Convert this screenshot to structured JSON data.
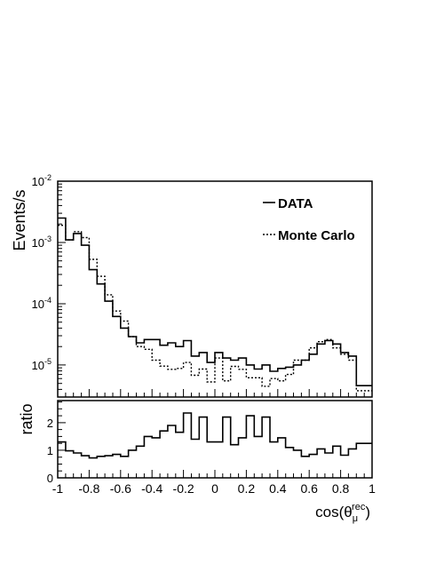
{
  "chart_data": {
    "type": "step-histogram",
    "x_edges": [
      -1.0,
      -0.95,
      -0.9,
      -0.85,
      -0.8,
      -0.75,
      -0.7,
      -0.65,
      -0.6,
      -0.55,
      -0.5,
      -0.45,
      -0.4,
      -0.35,
      -0.3,
      -0.25,
      -0.2,
      -0.15,
      -0.1,
      -0.05,
      0.0,
      0.05,
      0.1,
      0.15,
      0.2,
      0.25,
      0.3,
      0.35,
      0.4,
      0.45,
      0.5,
      0.55,
      0.6,
      0.65,
      0.7,
      0.75,
      0.8,
      0.85,
      0.9,
      0.95,
      1.0
    ],
    "top_panel": {
      "ylabel": "Events/s",
      "yscale": "log",
      "ylim": [
        3e-06,
        0.01
      ],
      "ytick_labels": [
        {
          "base": "10",
          "exp": "-2",
          "value": 0.01
        },
        {
          "base": "10",
          "exp": "-3",
          "value": 0.001
        },
        {
          "base": "10",
          "exp": "-4",
          "value": 0.0001
        },
        {
          "base": "10",
          "exp": "-5",
          "value": 1e-05
        }
      ],
      "series": [
        {
          "name": "DATA",
          "style": "solid",
          "values": [
            0.0025,
            0.0011,
            0.0014,
            0.0009,
            0.00036,
            0.00021,
            0.00011,
            6.2e-05,
            4e-05,
            2.9e-05,
            2.3e-05,
            2.6e-05,
            2.6e-05,
            2.1e-05,
            2.3e-05,
            2e-05,
            2.5e-05,
            1.4e-05,
            1.6e-05,
            1.1e-05,
            1.6e-05,
            1.3e-05,
            1.2e-05,
            1.3e-05,
            1e-05,
            8.6e-06,
            1e-05,
            7.9e-06,
            8.8e-06,
            9.2e-06,
            1e-05,
            1.2e-05,
            1.5e-05,
            2.2e-05,
            2.5e-05,
            2.2e-05,
            1.6e-05,
            1.4e-05,
            4.6e-06,
            4.6e-06
          ]
        },
        {
          "name": "Monte Carlo",
          "style": "dotted",
          "values": [
            0.0019,
            0.0011,
            0.0015,
            0.0012,
            0.00053,
            0.00028,
            0.00014,
            7.6e-05,
            5.2e-05,
            2.9e-05,
            2e-05,
            1.8e-05,
            1.2e-05,
            9.6e-06,
            8.5e-06,
            8.8e-06,
            1.1e-05,
            6.8e-06,
            8.6e-06,
            5.3e-06,
            1.3e-05,
            5.5e-06,
            9.5e-06,
            8.5e-06,
            6.2e-06,
            6.2e-06,
            4.5e-06,
            6e-06,
            5.5e-06,
            7e-06,
            1.2e-05,
            1.2e-05,
            1.9e-05,
            2.4e-05,
            2.6e-05,
            1.9e-05,
            1.5e-05,
            1.2e-05,
            3.8e-06,
            3.8e-06
          ]
        }
      ],
      "legend_position": "top-right"
    },
    "ratio_panel": {
      "ylabel": "ratio",
      "ylim": [
        0,
        2.8
      ],
      "yticks": [
        0,
        1,
        2
      ],
      "values": [
        1.3,
        0.98,
        0.9,
        0.8,
        0.72,
        0.78,
        0.8,
        0.85,
        0.78,
        1.0,
        1.15,
        1.5,
        1.45,
        1.7,
        1.9,
        1.65,
        2.35,
        1.4,
        2.2,
        1.3,
        1.3,
        2.2,
        1.2,
        1.45,
        2.25,
        1.5,
        2.2,
        1.3,
        1.45,
        1.1,
        1.0,
        0.78,
        0.85,
        1.05,
        0.9,
        1.15,
        0.82,
        1.05,
        1.25,
        1.25
      ]
    },
    "xlim": [
      -1,
      1
    ],
    "xtick_labels": [
      "-1",
      "-0.8",
      "-0.6",
      "-0.4",
      "-0.2",
      "0",
      "0.2",
      "0.4",
      "0.6",
      "0.8",
      "1"
    ],
    "xlabel": {
      "prefix": "cos(θ",
      "sub": "μ",
      "sup": "rec",
      "suffix": ")"
    }
  }
}
